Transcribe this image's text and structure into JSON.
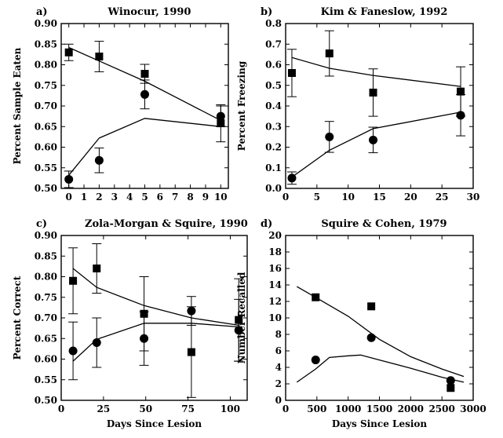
{
  "chart_data": [
    {
      "type": "scatter",
      "panel_label": "a)",
      "title": "Winocur, 1990",
      "xlabel": "",
      "ylabel": "Percent Sample Eaten",
      "xlim": [
        -0.5,
        10.5
      ],
      "ylim": [
        0.5,
        0.9
      ],
      "xticks": [
        "0",
        "1",
        "2",
        "3",
        "4",
        "5",
        "6",
        "7",
        "8",
        "9",
        "10"
      ],
      "yticks": [
        "0.50",
        "0.55",
        "0.60",
        "0.65",
        "0.70",
        "0.75",
        "0.80",
        "0.85",
        "0.90"
      ],
      "markers": [
        {
          "shape": "square",
          "points": [
            {
              "x": 0,
              "y": 0.83,
              "err": 0.02
            },
            {
              "x": 2,
              "y": 0.82,
              "err": 0.037
            },
            {
              "x": 5,
              "y": 0.778,
              "err": 0.023
            },
            {
              "x": 10,
              "y": 0.658,
              "err": 0.045
            }
          ]
        },
        {
          "shape": "circle",
          "points": [
            {
              "x": 0,
              "y": 0.522,
              "err": 0.02
            },
            {
              "x": 2,
              "y": 0.568,
              "err": 0.03
            },
            {
              "x": 5,
              "y": 0.728,
              "err": 0.035
            },
            {
              "x": 10,
              "y": 0.675,
              "err": 0.025
            }
          ]
        }
      ],
      "lines": [
        [
          [
            0,
            0.842
          ],
          [
            5,
            0.76
          ],
          [
            10,
            0.665
          ]
        ],
        [
          [
            0,
            0.532
          ],
          [
            2,
            0.622
          ],
          [
            5,
            0.67
          ],
          [
            10,
            0.65
          ]
        ]
      ]
    },
    {
      "type": "scatter",
      "panel_label": "b)",
      "title": "Kim & Faneslow, 1992",
      "xlabel": "",
      "ylabel": "Percent Freezing",
      "xlim": [
        0,
        30
      ],
      "ylim": [
        0,
        0.8
      ],
      "xticks": [
        "0",
        "5",
        "10",
        "15",
        "20",
        "25",
        "30"
      ],
      "yticks": [
        "0.0",
        "0.1",
        "0.2",
        "0.3",
        "0.4",
        "0.5",
        "0.6",
        "0.7",
        "0.8"
      ],
      "markers": [
        {
          "shape": "square",
          "points": [
            {
              "x": 1,
              "y": 0.56,
              "err": 0.115
            },
            {
              "x": 7,
              "y": 0.655,
              "err": 0.11
            },
            {
              "x": 14,
              "y": 0.465,
              "err": 0.115
            },
            {
              "x": 28,
              "y": 0.47,
              "err": 0.12
            }
          ]
        },
        {
          "shape": "circle",
          "points": [
            {
              "x": 1,
              "y": 0.05,
              "err": 0.03
            },
            {
              "x": 7,
              "y": 0.25,
              "err": 0.075
            },
            {
              "x": 14,
              "y": 0.235,
              "err": 0.062
            },
            {
              "x": 28,
              "y": 0.355,
              "err": 0.1
            }
          ]
        }
      ],
      "lines": [
        [
          [
            1,
            0.635
          ],
          [
            7,
            0.583
          ],
          [
            14,
            0.548
          ],
          [
            28,
            0.495
          ]
        ],
        [
          [
            1,
            0.055
          ],
          [
            7,
            0.185
          ],
          [
            14,
            0.29
          ],
          [
            28,
            0.37
          ]
        ]
      ]
    },
    {
      "type": "scatter",
      "panel_label": "c)",
      "title": "Zola-Morgan & Squire, 1990",
      "xlabel": "Days Since Lesion",
      "ylabel": "Percent Correct",
      "xlim": [
        0,
        110
      ],
      "ylim": [
        0.5,
        0.9
      ],
      "xticks": [
        "0",
        "25",
        "50",
        "75",
        "100"
      ],
      "yticks": [
        "0.50",
        "0.55",
        "0.60",
        "0.65",
        "0.70",
        "0.75",
        "0.80",
        "0.85",
        "0.90"
      ],
      "markers": [
        {
          "shape": "square",
          "points": [
            {
              "x": 7,
              "y": 0.79,
              "err": 0.08
            },
            {
              "x": 21,
              "y": 0.82,
              "err": 0.06
            },
            {
              "x": 49,
              "y": 0.71,
              "err": 0.09
            },
            {
              "x": 77,
              "y": 0.617,
              "err": 0.11
            },
            {
              "x": 105,
              "y": 0.695,
              "err": 0.1
            }
          ]
        },
        {
          "shape": "circle",
          "points": [
            {
              "x": 7,
              "y": 0.62,
              "err": 0.07
            },
            {
              "x": 21,
              "y": 0.64,
              "err": 0.06
            },
            {
              "x": 49,
              "y": 0.65,
              "err": 0.065
            },
            {
              "x": 77,
              "y": 0.717,
              "err": 0.035
            },
            {
              "x": 105,
              "y": 0.67,
              "err": 0.075
            }
          ]
        }
      ],
      "lines": [
        [
          [
            7,
            0.82
          ],
          [
            21,
            0.774
          ],
          [
            49,
            0.73
          ],
          [
            77,
            0.7
          ],
          [
            105,
            0.682
          ]
        ],
        [
          [
            7,
            0.595
          ],
          [
            21,
            0.648
          ],
          [
            49,
            0.687
          ],
          [
            77,
            0.687
          ],
          [
            105,
            0.678
          ]
        ]
      ]
    },
    {
      "type": "scatter",
      "panel_label": "d)",
      "title": "Squire & Cohen, 1979",
      "xlabel": "Days Since Lesion",
      "ylabel": "Number Recalled",
      "xlim": [
        0,
        3000
      ],
      "ylim": [
        0,
        20
      ],
      "xticks": [
        "0",
        "500",
        "1000",
        "1500",
        "2000",
        "2500",
        "3000"
      ],
      "yticks": [
        "0",
        "2",
        "4",
        "6",
        "8",
        "10",
        "12",
        "14",
        "16",
        "18",
        "20"
      ],
      "markers": [
        {
          "shape": "square",
          "points": [
            {
              "x": 480,
              "y": 12.5
            },
            {
              "x": 1370,
              "y": 11.4
            },
            {
              "x": 2640,
              "y": 1.5
            }
          ]
        },
        {
          "shape": "circle",
          "points": [
            {
              "x": 480,
              "y": 4.9
            },
            {
              "x": 1370,
              "y": 7.6
            },
            {
              "x": 2640,
              "y": 2.4
            }
          ]
        }
      ],
      "lines": [
        [
          [
            180,
            13.8
          ],
          [
            480,
            12.5
          ],
          [
            1000,
            10.2
          ],
          [
            1500,
            7.4
          ],
          [
            2000,
            5.3
          ],
          [
            2500,
            3.8
          ],
          [
            2850,
            2.9
          ]
        ],
        [
          [
            180,
            2.2
          ],
          [
            480,
            3.8
          ],
          [
            700,
            5.2
          ],
          [
            1000,
            5.4
          ],
          [
            1200,
            5.5
          ],
          [
            1500,
            4.9
          ],
          [
            2000,
            3.9
          ],
          [
            2500,
            2.8
          ],
          [
            2850,
            2.2
          ]
        ]
      ]
    }
  ]
}
